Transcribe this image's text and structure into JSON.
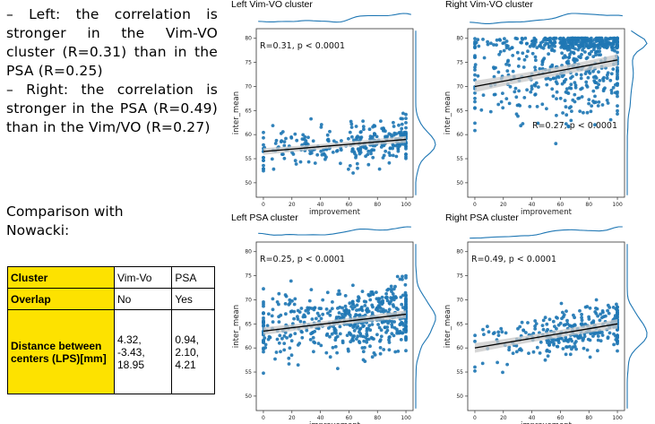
{
  "notes": {
    "left_line": "– Left: the correlation is stronger in the Vim-VO cluster (R=0.31) than in the PSA (R=0.25)",
    "right_line": "– Right: the correlation is stronger in the PSA (R=0.49) than in the Vim/VO (R=0.27)",
    "comparison_line1": "Comparison with",
    "comparison_line2": "Nowacki:"
  },
  "table": {
    "header": [
      "Cluster",
      "Vim-Vo",
      "PSA"
    ],
    "overlap": [
      "Overlap",
      "No",
      "Yes"
    ],
    "distance_label": "Distance between centers (LPS)[mm]",
    "distance_vimvo": [
      "4.32,",
      "-3.43,",
      "18.95"
    ],
    "distance_psa": [
      "0.94,",
      "2.10,",
      "4.21"
    ]
  },
  "colors": {
    "points": "#1f77b4",
    "regression": "#000000",
    "band": "#c8c8c8",
    "highlight": "#fde200"
  },
  "chart_data": [
    {
      "type": "scatter",
      "title": "Left Vim-VO cluster",
      "xlabel": "improvement",
      "ylabel": "inter_mean",
      "xlim": [
        -5,
        105
      ],
      "ylim": [
        47,
        82
      ],
      "xticks": [
        0,
        20,
        40,
        60,
        80,
        100
      ],
      "yticks": [
        50,
        55,
        60,
        65,
        70,
        75,
        80
      ],
      "annotation": "R=0.31, p < 0.0001",
      "annotation_pos": "top-left",
      "regression": {
        "x": [
          0,
          100
        ],
        "y": [
          56.5,
          59.0
        ],
        "band": 0.35
      },
      "distribution": {
        "x_center": 55,
        "x_width": 38,
        "y_center": 57.5,
        "y_width": 2.2,
        "n": 280
      },
      "marginal_y_range": [
        48,
        68
      ]
    },
    {
      "type": "scatter",
      "title": "Right Vim-VO cluster",
      "xlabel": "improvement",
      "ylabel": "inter_mean",
      "xlim": [
        -5,
        105
      ],
      "ylim": [
        47,
        82
      ],
      "xticks": [
        0,
        20,
        40,
        60,
        80,
        100
      ],
      "yticks": [
        50,
        55,
        60,
        65,
        70,
        75,
        80
      ],
      "annotation": "R=0.27, p < 0.0001",
      "annotation_pos": "bottom-right",
      "regression": {
        "x": [
          0,
          100
        ],
        "y": [
          70.0,
          75.5
        ],
        "band": 0.6
      },
      "distribution": {
        "x_center": 60,
        "x_width": 36,
        "y_center": 73.5,
        "y_width": 5.5,
        "n": 650
      },
      "marginal_y_range": [
        55,
        81
      ]
    },
    {
      "type": "scatter",
      "title": "Left PSA cluster",
      "xlabel": "improvement",
      "ylabel": "inter_mean",
      "xlim": [
        -5,
        105
      ],
      "ylim": [
        47,
        82
      ],
      "xticks": [
        0,
        20,
        40,
        60,
        80,
        100
      ],
      "yticks": [
        50,
        55,
        60,
        65,
        70,
        75,
        80
      ],
      "annotation": "R=0.25, p < 0.0001",
      "annotation_pos": "top-left",
      "regression": {
        "x": [
          0,
          100
        ],
        "y": [
          63.5,
          67.0
        ],
        "band": 0.4
      },
      "distribution": {
        "x_center": 55,
        "x_width": 40,
        "y_center": 65.5,
        "y_width": 3.2,
        "n": 560
      },
      "marginal_y_range": [
        48,
        75
      ]
    },
    {
      "type": "scatter",
      "title": "Right PSA cluster",
      "xlabel": "improvement",
      "ylabel": "inter_mean",
      "xlim": [
        -5,
        105
      ],
      "ylim": [
        47,
        82
      ],
      "xticks": [
        0,
        20,
        40,
        60,
        80,
        100
      ],
      "yticks": [
        50,
        55,
        60,
        65,
        70,
        75,
        80
      ],
      "annotation": "R=0.49, p < 0.0001",
      "annotation_pos": "top-left",
      "regression": {
        "x": [
          0,
          100
        ],
        "y": [
          60.0,
          65.0
        ],
        "band": 0.5
      },
      "distribution": {
        "x_center": 62,
        "x_width": 34,
        "y_center": 63.0,
        "y_width": 2.4,
        "n": 300
      },
      "marginal_y_range": [
        52,
        70
      ]
    }
  ]
}
